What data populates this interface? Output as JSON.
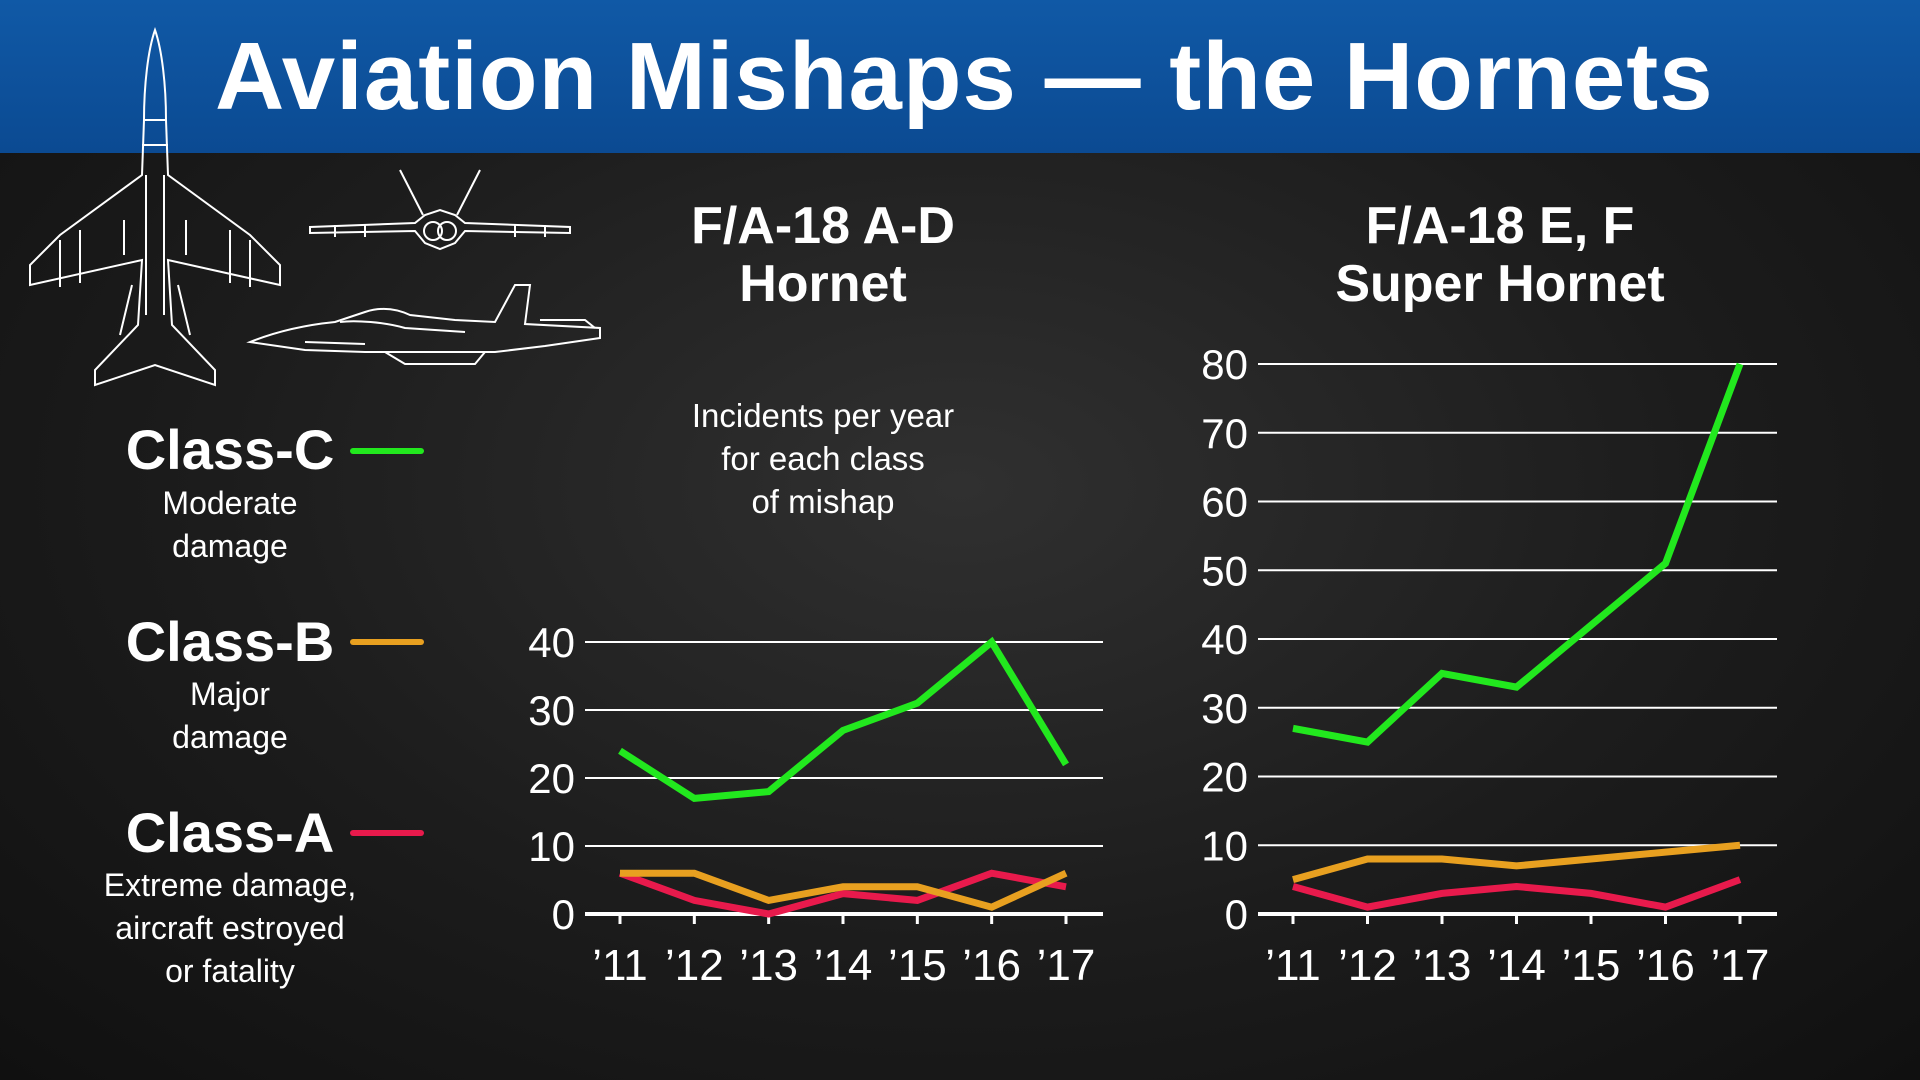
{
  "title": "Aviation Mishaps — the Hornets",
  "subtitle": [
    "Incidents per year",
    "for each class",
    "of mishap"
  ],
  "legend": [
    {
      "label": "Class-C",
      "color": "#22e81e",
      "desc": [
        "Moderate",
        "damage"
      ]
    },
    {
      "label": "Class-B",
      "color": "#e8a020",
      "desc": [
        "Major",
        "damage"
      ]
    },
    {
      "label": "Class-A",
      "color": "#e81a4c",
      "desc": [
        "Extreme damage,",
        "aircraft estroyed",
        "or fatality"
      ]
    }
  ],
  "chart_data": [
    {
      "type": "line",
      "title": [
        "F/A-18 A-D",
        "Hornet"
      ],
      "x": [
        "’11",
        "’12",
        "’13",
        "’14",
        "’15",
        "’16",
        "’17"
      ],
      "yticks": [
        0,
        10,
        20,
        30,
        40
      ],
      "ylim": [
        0,
        40
      ],
      "grid": true,
      "series": [
        {
          "name": "Class-C",
          "color": "#22e81e",
          "values": [
            24,
            17,
            18,
            27,
            31,
            40,
            22
          ]
        },
        {
          "name": "Class-B",
          "color": "#e8a020",
          "values": [
            6,
            6,
            2,
            4,
            4,
            1,
            6
          ]
        },
        {
          "name": "Class-A",
          "color": "#e81a4c",
          "values": [
            6,
            2,
            0,
            3,
            2,
            6,
            4
          ]
        }
      ]
    },
    {
      "type": "line",
      "title": [
        "F/A-18 E, F",
        "Super Hornet"
      ],
      "x": [
        "’11",
        "’12",
        "’13",
        "’14",
        "’15",
        "’16",
        "’17"
      ],
      "yticks": [
        0,
        10,
        20,
        30,
        40,
        50,
        60,
        70,
        80
      ],
      "ylim": [
        0,
        80
      ],
      "grid": true,
      "series": [
        {
          "name": "Class-C",
          "color": "#22e81e",
          "values": [
            27,
            25,
            35,
            33,
            42,
            51,
            80
          ]
        },
        {
          "name": "Class-B",
          "color": "#e8a020",
          "values": [
            5,
            8,
            8,
            7,
            8,
            9,
            10
          ]
        },
        {
          "name": "Class-A",
          "color": "#e81a4c",
          "values": [
            4,
            1,
            3,
            4,
            3,
            1,
            5
          ]
        }
      ]
    }
  ]
}
